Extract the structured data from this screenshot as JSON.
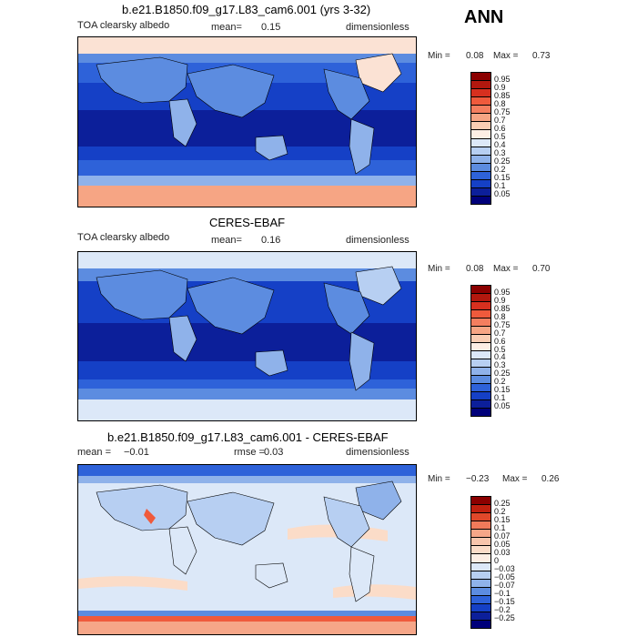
{
  "season": "ANN",
  "panels": [
    {
      "title": "b.e21.B1850.f09_g17.L83_cam6.001 (yrs 3-32)",
      "variable": "TOA clearsky albedo",
      "stat_label": "mean=",
      "stat_value": "0.15",
      "units": "dimensionless",
      "min_label": "Min =",
      "min_value": "0.08",
      "max_label": "Max =",
      "max_value": "0.73",
      "levels": [
        "0.95",
        "0.9",
        "0.85",
        "0.8",
        "0.75",
        "0.7",
        "0.6",
        "0.5",
        "0.4",
        "0.3",
        "0.25",
        "0.2",
        "0.15",
        "0.1",
        "0.05"
      ]
    },
    {
      "title": "CERES-EBAF",
      "variable": "TOA clearsky albedo",
      "stat_label": "mean=",
      "stat_value": "0.16",
      "units": "dimensionless",
      "min_label": "Min =",
      "min_value": "0.08",
      "max_label": "Max =",
      "max_value": "0.70",
      "levels": [
        "0.95",
        "0.9",
        "0.85",
        "0.8",
        "0.75",
        "0.7",
        "0.6",
        "0.5",
        "0.4",
        "0.3",
        "0.25",
        "0.2",
        "0.15",
        "0.1",
        "0.05"
      ]
    },
    {
      "title": "b.e21.B1850.f09_g17.L83_cam6.001 - CERES-EBAF",
      "mean_label": "mean =",
      "mean_value": "−0.01",
      "rmse_label": "rmse =",
      "rmse_value": "0.03",
      "units": "dimensionless",
      "min_label": "Min =",
      "min_value": "−0.23",
      "max_label": "Max =",
      "max_value": "0.26",
      "levels": [
        "0.25",
        "0.2",
        "0.15",
        "0.1",
        "0.07",
        "0.05",
        "0.03",
        "0",
        "−0.03",
        "−0.05",
        "−0.07",
        "−0.1",
        "−0.15",
        "−0.2",
        "−0.25"
      ]
    }
  ],
  "colors": {
    "albedo_scale": [
      "#8b0000",
      "#b2180e",
      "#d7301f",
      "#ef5a3c",
      "#f47e5f",
      "#f6a584",
      "#f9cdb3",
      "#fdeee4",
      "#dce8f8",
      "#b7cff2",
      "#8fb2ea",
      "#5c8ce0",
      "#2e62d9",
      "#1540c6",
      "#0c1f9a",
      "#00007a"
    ],
    "diff_scale": [
      "#8b0000",
      "#c0200f",
      "#e0482a",
      "#f07a5a",
      "#f6a688",
      "#f8c5ac",
      "#fbdcc8",
      "#fdeee4",
      "#dce8f8",
      "#b7cff2",
      "#8fb2ea",
      "#5c8ce0",
      "#2e62d9",
      "#1540c6",
      "#0c1f9a",
      "#00007a"
    ]
  },
  "chart_data": [
    {
      "type": "heatmap",
      "title": "b.e21.B1850.f09_g17.L83_cam6.001 (yrs 3-32)",
      "subtitle": "TOA clearsky albedo",
      "mean": 0.15,
      "min": 0.08,
      "max": 0.73,
      "units": "dimensionless",
      "contour_levels": [
        0.05,
        0.1,
        0.15,
        0.2,
        0.25,
        0.3,
        0.4,
        0.5,
        0.6,
        0.7,
        0.75,
        0.8,
        0.85,
        0.9,
        0.95
      ]
    },
    {
      "type": "heatmap",
      "title": "CERES-EBAF",
      "subtitle": "TOA clearsky albedo",
      "mean": 0.16,
      "min": 0.08,
      "max": 0.7,
      "units": "dimensionless",
      "contour_levels": [
        0.05,
        0.1,
        0.15,
        0.2,
        0.25,
        0.3,
        0.4,
        0.5,
        0.6,
        0.7,
        0.75,
        0.8,
        0.85,
        0.9,
        0.95
      ]
    },
    {
      "type": "heatmap",
      "title": "b.e21.B1850.f09_g17.L83_cam6.001 - CERES-EBAF",
      "mean": -0.01,
      "rmse": 0.03,
      "min": -0.23,
      "max": 0.26,
      "units": "dimensionless",
      "contour_levels": [
        -0.25,
        -0.2,
        -0.15,
        -0.1,
        -0.07,
        -0.05,
        -0.03,
        0,
        0.03,
        0.05,
        0.07,
        0.1,
        0.15,
        0.2,
        0.25
      ]
    }
  ]
}
